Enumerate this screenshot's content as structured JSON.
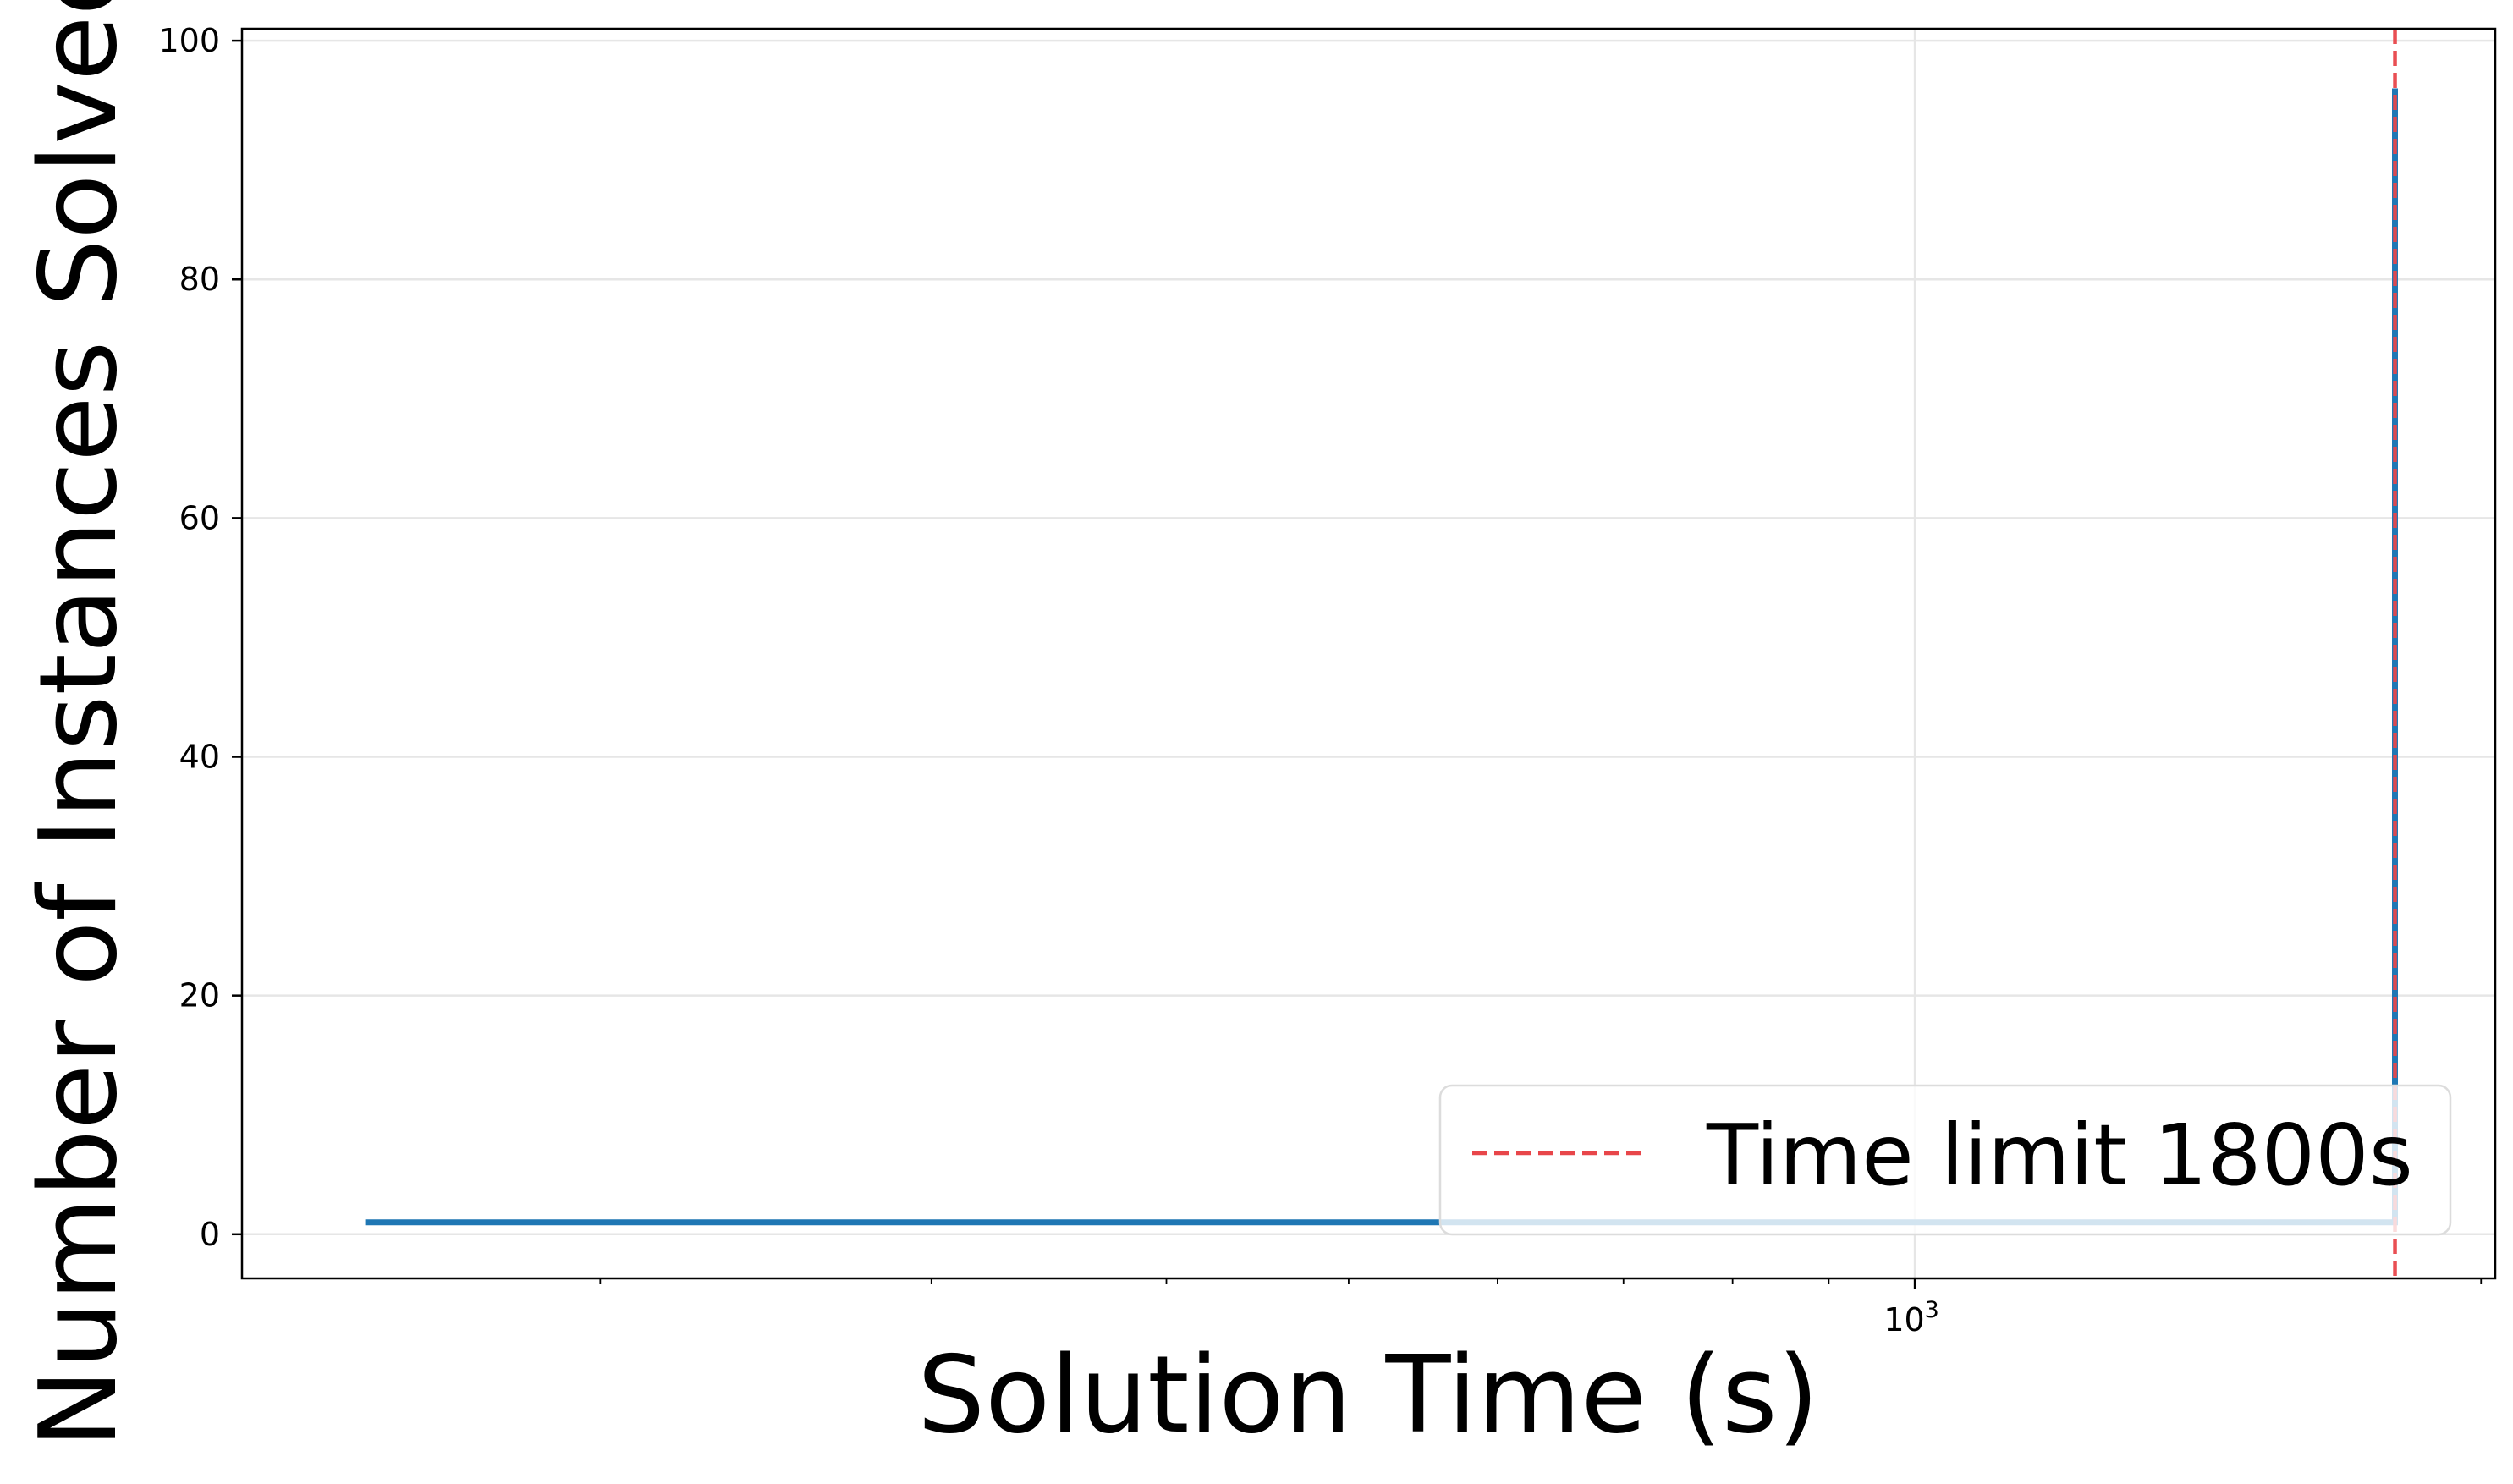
{
  "chart_data": {
    "type": "line",
    "xlabel": "Solution Time (s)",
    "ylabel": "Number of Instances Solved",
    "x_scale": "log",
    "xlim": [
      129,
      2035
    ],
    "ylim": [
      -3.7,
      101
    ],
    "grid": true,
    "legend_position": "lower-right",
    "x_ticks": [
      {
        "value": 1000,
        "label_base": "10",
        "label_exp": "3"
      }
    ],
    "y_ticks": [
      0,
      20,
      40,
      60,
      80,
      100
    ],
    "series": [
      {
        "color": "#1f77b4",
        "x": [
          150,
          1799,
          1800,
          1800
        ],
        "y": [
          1,
          1,
          1,
          96
        ]
      }
    ],
    "reference_lines": [
      {
        "x": 1800,
        "color": "#e8464a",
        "style": "dashed",
        "label": "Time limit 1800s"
      }
    ]
  }
}
